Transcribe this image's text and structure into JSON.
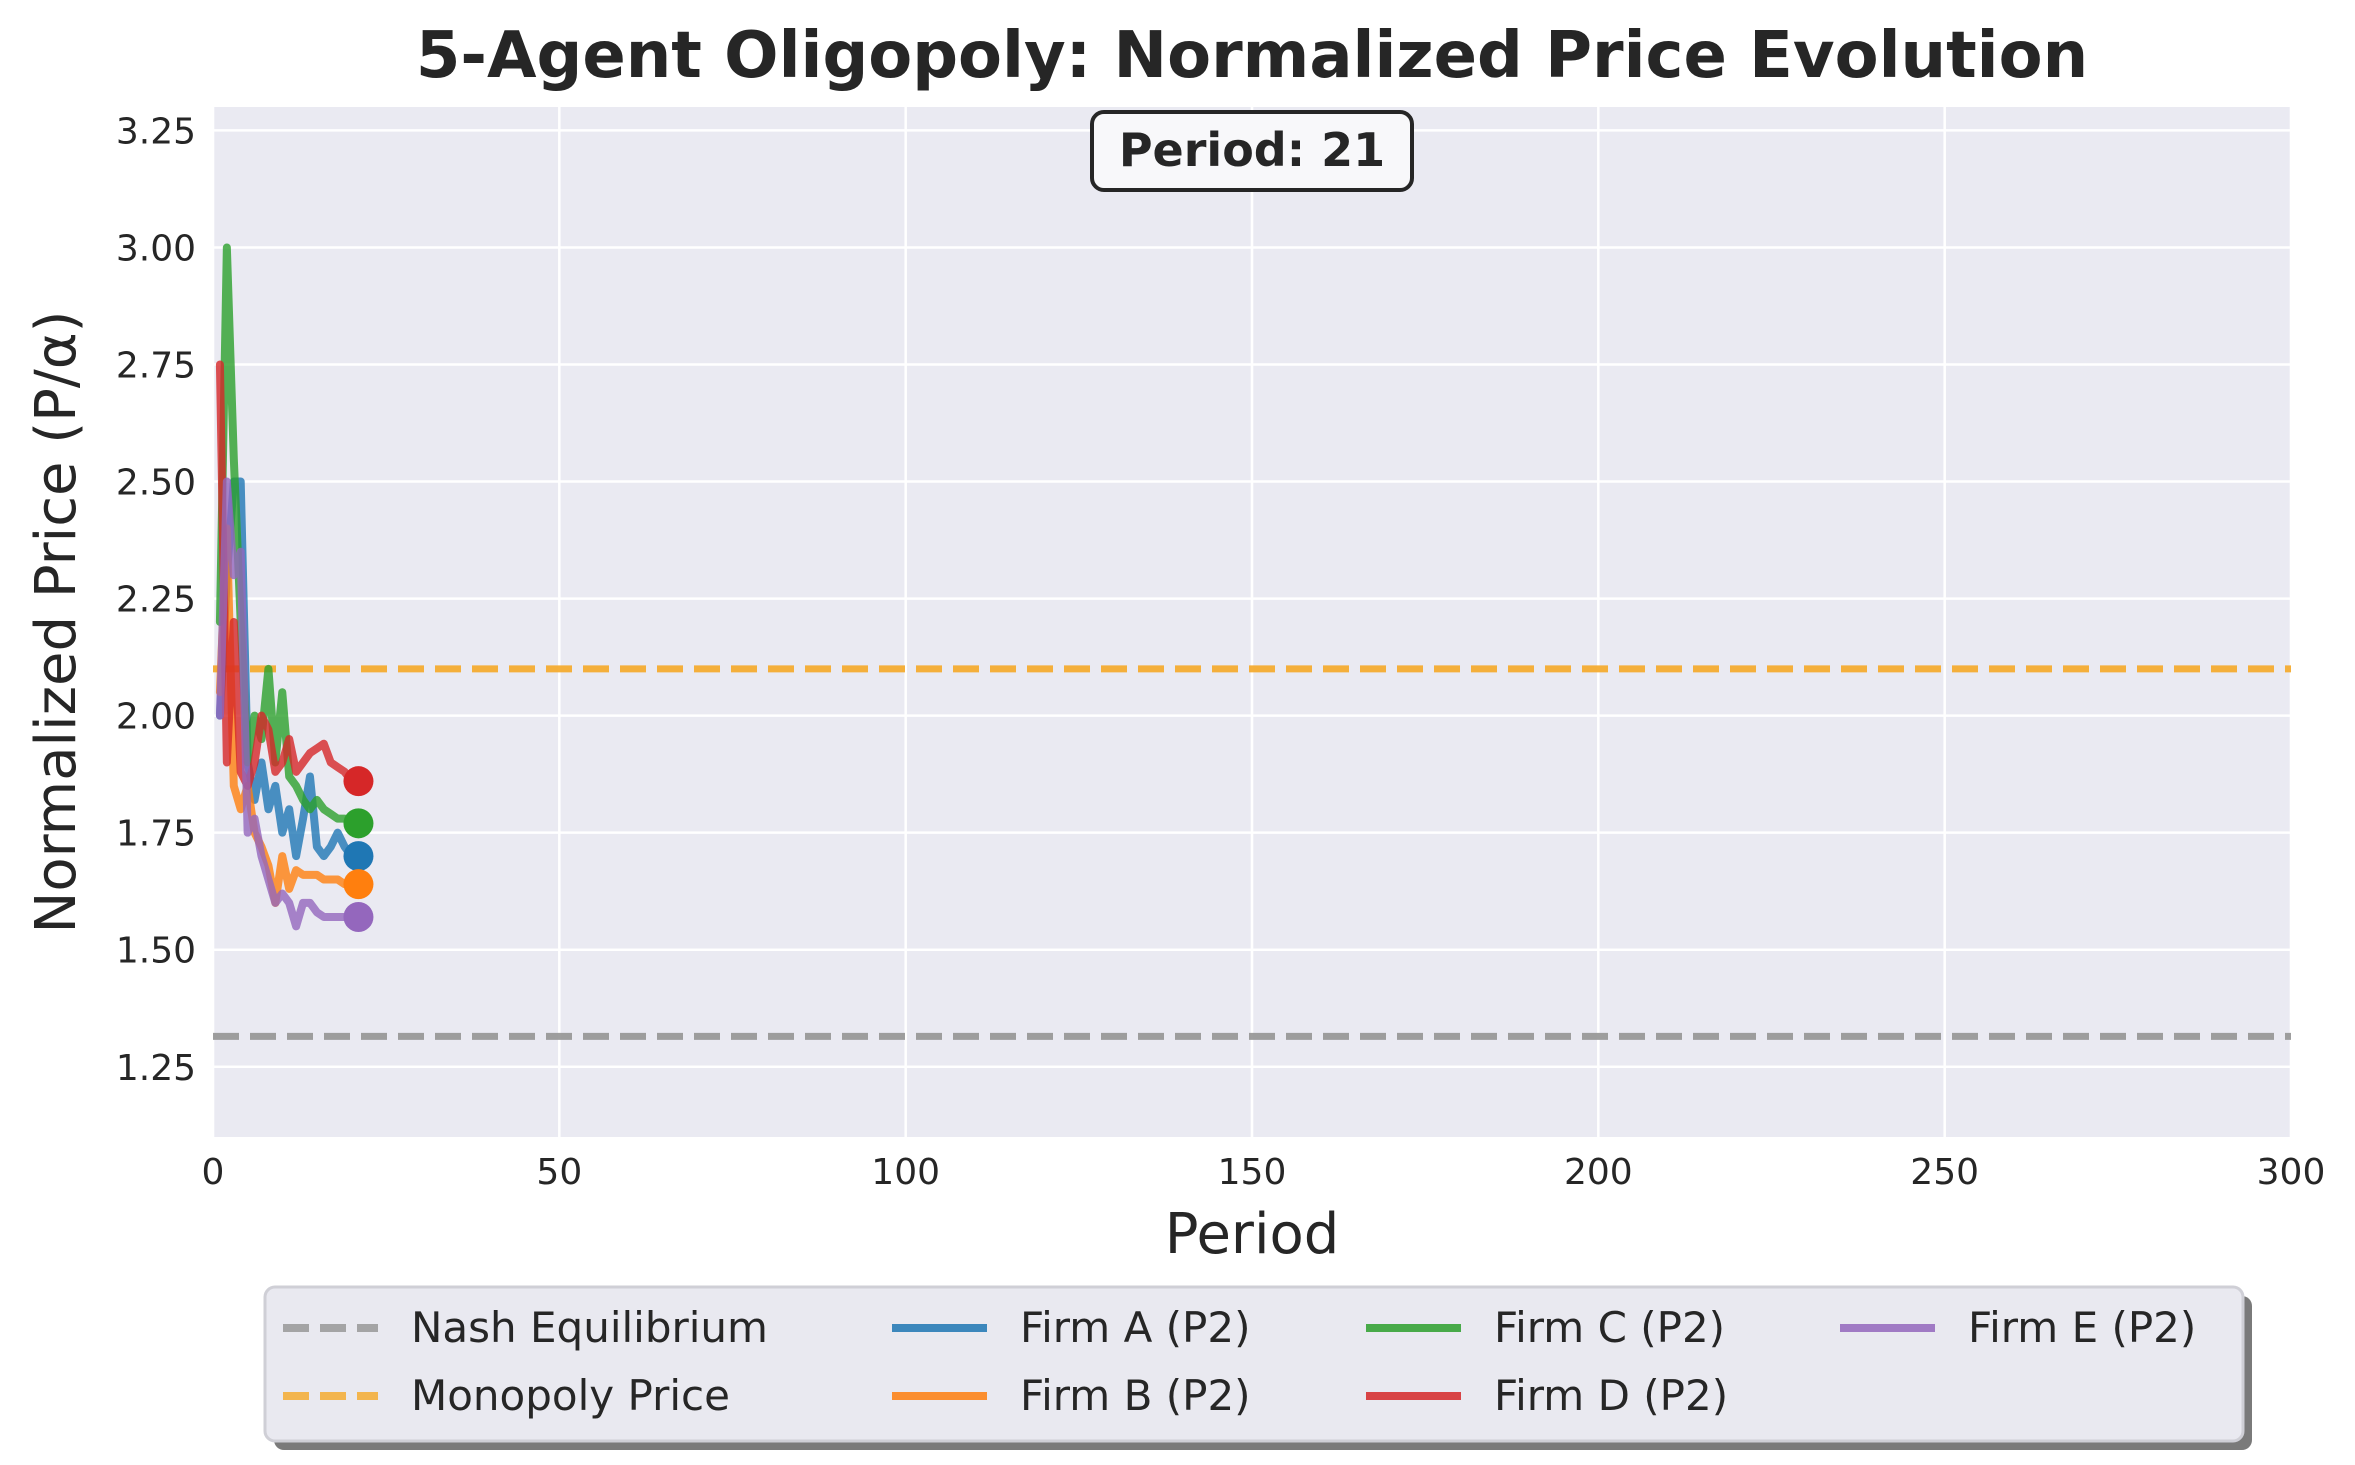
{
  "chart_data": {
    "type": "line",
    "title": "5-Agent Oligopoly: Normalized Price Evolution",
    "xlabel": "Period",
    "ylabel": "Normalized Price (P/α)",
    "xlim": [
      0,
      300
    ],
    "ylim": [
      1.1,
      3.3
    ],
    "xticks": [
      0,
      50,
      100,
      150,
      200,
      250,
      300
    ],
    "yticks": [
      1.25,
      1.5,
      1.75,
      2.0,
      2.25,
      2.5,
      2.75,
      3.0,
      3.25
    ],
    "xtick_labels": [
      "0",
      "50",
      "100",
      "150",
      "200",
      "250",
      "300"
    ],
    "ytick_labels": [
      "1.25",
      "1.50",
      "1.75",
      "2.00",
      "2.25",
      "2.50",
      "2.75",
      "3.00",
      "3.25"
    ],
    "grid": true,
    "legend_position": "bottom",
    "annotation": "Period: 21",
    "reference_lines": [
      {
        "name": "Nash Equilibrium",
        "y": 1.315,
        "color": "#999999"
      },
      {
        "name": "Monopoly Price",
        "y": 2.1,
        "color": "#f5ac32"
      }
    ],
    "series": [
      {
        "name": "Firm A (P2)",
        "color": "#1f77b4",
        "x": [
          1,
          2,
          3,
          4,
          5,
          6,
          7,
          8,
          9,
          10,
          11,
          12,
          13,
          14,
          15,
          16,
          17,
          18,
          19,
          20,
          21
        ],
        "y": [
          2.0,
          2.3,
          2.5,
          2.5,
          1.9,
          1.82,
          1.9,
          1.8,
          1.85,
          1.75,
          1.8,
          1.7,
          1.78,
          1.87,
          1.72,
          1.7,
          1.72,
          1.75,
          1.72,
          1.7,
          1.7
        ]
      },
      {
        "name": "Firm B (P2)",
        "color": "#ff7f0e",
        "x": [
          1,
          2,
          3,
          4,
          5,
          6,
          7,
          8,
          9,
          10,
          11,
          12,
          13,
          14,
          15,
          16,
          17,
          18,
          19,
          20,
          21
        ],
        "y": [
          2.05,
          2.4,
          1.85,
          1.8,
          1.85,
          1.75,
          1.72,
          1.68,
          1.6,
          1.7,
          1.63,
          1.67,
          1.66,
          1.66,
          1.66,
          1.65,
          1.65,
          1.65,
          1.64,
          1.64,
          1.64
        ]
      },
      {
        "name": "Firm C (P2)",
        "color": "#2ca02c",
        "x": [
          1,
          2,
          3,
          4,
          5,
          6,
          7,
          8,
          9,
          10,
          11,
          12,
          13,
          14,
          15,
          16,
          17,
          18,
          19,
          20,
          21
        ],
        "y": [
          2.2,
          3.0,
          2.55,
          2.2,
          1.9,
          2.0,
          1.95,
          2.1,
          1.9,
          2.05,
          1.87,
          1.85,
          1.82,
          1.8,
          1.82,
          1.8,
          1.79,
          1.78,
          1.78,
          1.77,
          1.77
        ]
      },
      {
        "name": "Firm D (P2)",
        "color": "#d62728",
        "x": [
          1,
          2,
          3,
          4,
          5,
          6,
          7,
          8,
          9,
          10,
          11,
          12,
          13,
          14,
          15,
          16,
          17,
          18,
          19,
          20,
          21
        ],
        "y": [
          2.75,
          1.9,
          2.2,
          1.88,
          1.85,
          1.9,
          2.0,
          1.97,
          1.88,
          1.9,
          1.95,
          1.88,
          1.9,
          1.92,
          1.93,
          1.94,
          1.9,
          1.89,
          1.88,
          1.86,
          1.86
        ]
      },
      {
        "name": "Firm E (P2)",
        "color": "#9467bd",
        "x": [
          1,
          2,
          3,
          4,
          5,
          6,
          7,
          8,
          9,
          10,
          11,
          12,
          13,
          14,
          15,
          16,
          17,
          18,
          19,
          20,
          21
        ],
        "y": [
          2.0,
          2.5,
          2.3,
          2.35,
          1.75,
          1.78,
          1.7,
          1.65,
          1.6,
          1.62,
          1.6,
          1.55,
          1.6,
          1.6,
          1.58,
          1.57,
          1.57,
          1.57,
          1.57,
          1.57,
          1.57
        ]
      }
    ]
  }
}
